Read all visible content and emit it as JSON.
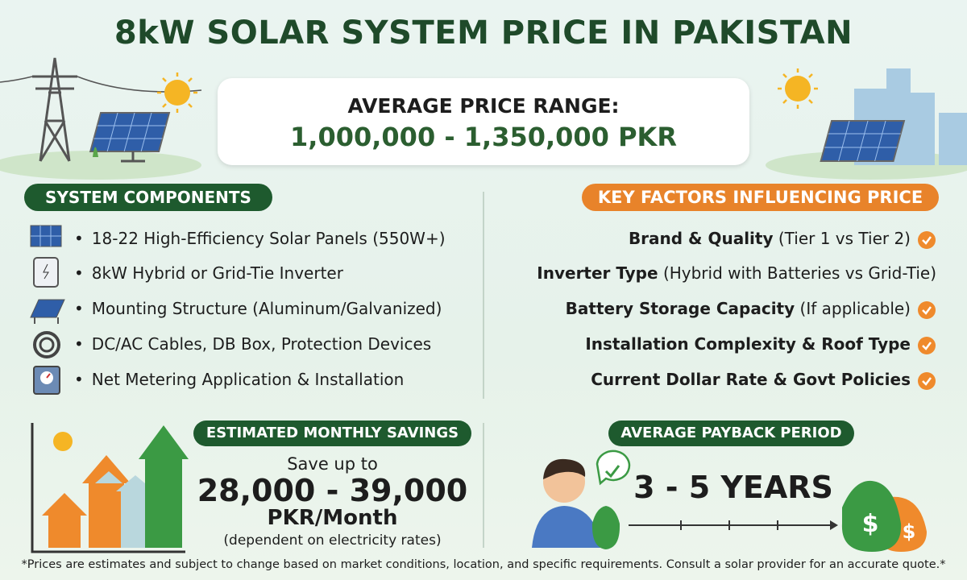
{
  "header": {
    "title": "8kW SOLAR SYSTEM PRICE IN PAKISTAN"
  },
  "price_box": {
    "label": "AVERAGE PRICE RANGE:",
    "value": "1,000,000 - 1,350,000 PKR"
  },
  "components": {
    "heading": "SYSTEM COMPONENTS",
    "items": [
      "18-22 High-Efficiency Solar Panels (550W+)",
      "8kW Hybrid or Grid-Tie Inverter",
      "Mounting Structure (Aluminum/Galvanized)",
      "DC/AC Cables, DB Box, Protection Devices",
      "Net Metering Application & Installation"
    ]
  },
  "factors": {
    "heading": "KEY FACTORS INFLUENCING PRICE",
    "items": [
      {
        "bold": "Brand & Quality",
        "note": "(Tier 1 vs Tier 2)"
      },
      {
        "bold": "Inverter Type",
        "note": "(Hybrid with Batteries vs Grid-Tie)"
      },
      {
        "bold": "Battery Storage Capacity",
        "note": "(If applicable)"
      },
      {
        "bold": "Installation Complexity & Roof Type"
      },
      {
        "bold": "Current Dollar Rate & Govt Policies"
      }
    ]
  },
  "savings": {
    "heading": "ESTIMATED MONTHLY SAVINGS",
    "lead": "Save up to",
    "amount": "28,000 - 39,000",
    "unit": "PKR/Month",
    "note": "(dependent on electricity rates)"
  },
  "payback": {
    "heading": "AVERAGE PAYBACK PERIOD",
    "value": "3 - 5 YEARS"
  },
  "footnote": "*Prices are estimates and subject to change based on market conditions, location, and specific requirements. Consult a solar provider for an accurate quote.*"
}
